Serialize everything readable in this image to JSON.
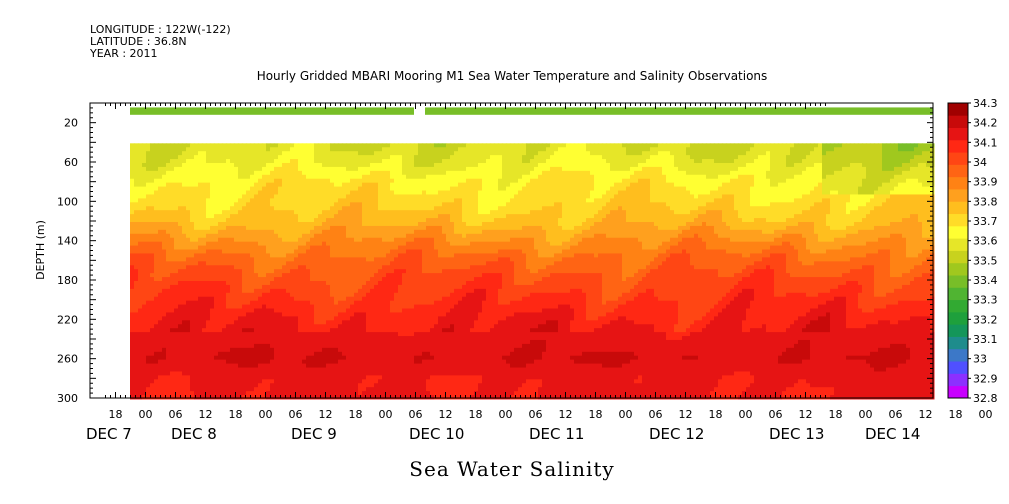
{
  "header": {
    "longitude": "LONGITUDE : 122W(-122)",
    "latitude": "LATITUDE : 36.8N",
    "year": "YEAR : 2011"
  },
  "colors": {
    "scale": [
      "#c800ff",
      "#8c30ff",
      "#5050ff",
      "#3c78c8",
      "#1e8c8c",
      "#14965a",
      "#1ea03c",
      "#32aa32",
      "#50b432",
      "#78be28",
      "#a0c81e",
      "#c8d21e",
      "#e6e628",
      "#ffff32",
      "#ffdc28",
      "#ffbe1e",
      "#ffa01e",
      "#ff8214",
      "#ff6414",
      "#ff4614",
      "#ff2814",
      "#e61414",
      "#c80a0a",
      "#a00000"
    ]
  },
  "chart_data": {
    "type": "heatmap",
    "title": "Hourly Gridded MBARI Mooring M1 Sea Water Temperature and Salinity Observations",
    "xlabel_main": "Sea Water Salinity",
    "ylabel": "DEPTH (m)",
    "y_ticks": [
      20,
      60,
      100,
      140,
      180,
      220,
      260,
      300
    ],
    "x_hour_ticks": [
      "18",
      "00",
      "06",
      "12",
      "18",
      "00",
      "06",
      "12",
      "18",
      "00",
      "06",
      "12",
      "18",
      "00",
      "06",
      "12",
      "18",
      "00",
      "06",
      "12",
      "18",
      "00",
      "06",
      "12",
      "18",
      "00",
      "06",
      "12",
      "18",
      "00",
      "06",
      "12",
      "18",
      "00",
      "06",
      "12"
    ],
    "x_day_labels": [
      "DEC  7",
      "DEC  8",
      "DEC  9",
      "DEC 10",
      "DEC 11",
      "DEC 12",
      "DEC 13",
      "DEC 14"
    ],
    "colorbar_levels": [
      "32.8",
      "32.9",
      "33",
      "33.1",
      "33.2",
      "33.3",
      "33.4",
      "33.5",
      "33.6",
      "33.7",
      "33.8",
      "33.9",
      "34",
      "34.1",
      "34.2",
      "34.3"
    ],
    "depth_profile": {
      "depth_m": [
        40,
        60,
        80,
        100,
        120,
        140,
        160,
        180,
        200,
        220,
        240,
        260,
        280,
        300
      ],
      "salinity": [
        33.55,
        33.6,
        33.68,
        33.72,
        33.78,
        33.88,
        33.97,
        34.03,
        34.08,
        34.13,
        34.17,
        34.2,
        34.15,
        34.15
      ]
    },
    "surface_salinity": 33.4,
    "ylim": [
      0,
      300
    ],
    "zlim": [
      32.8,
      34.3
    ]
  }
}
